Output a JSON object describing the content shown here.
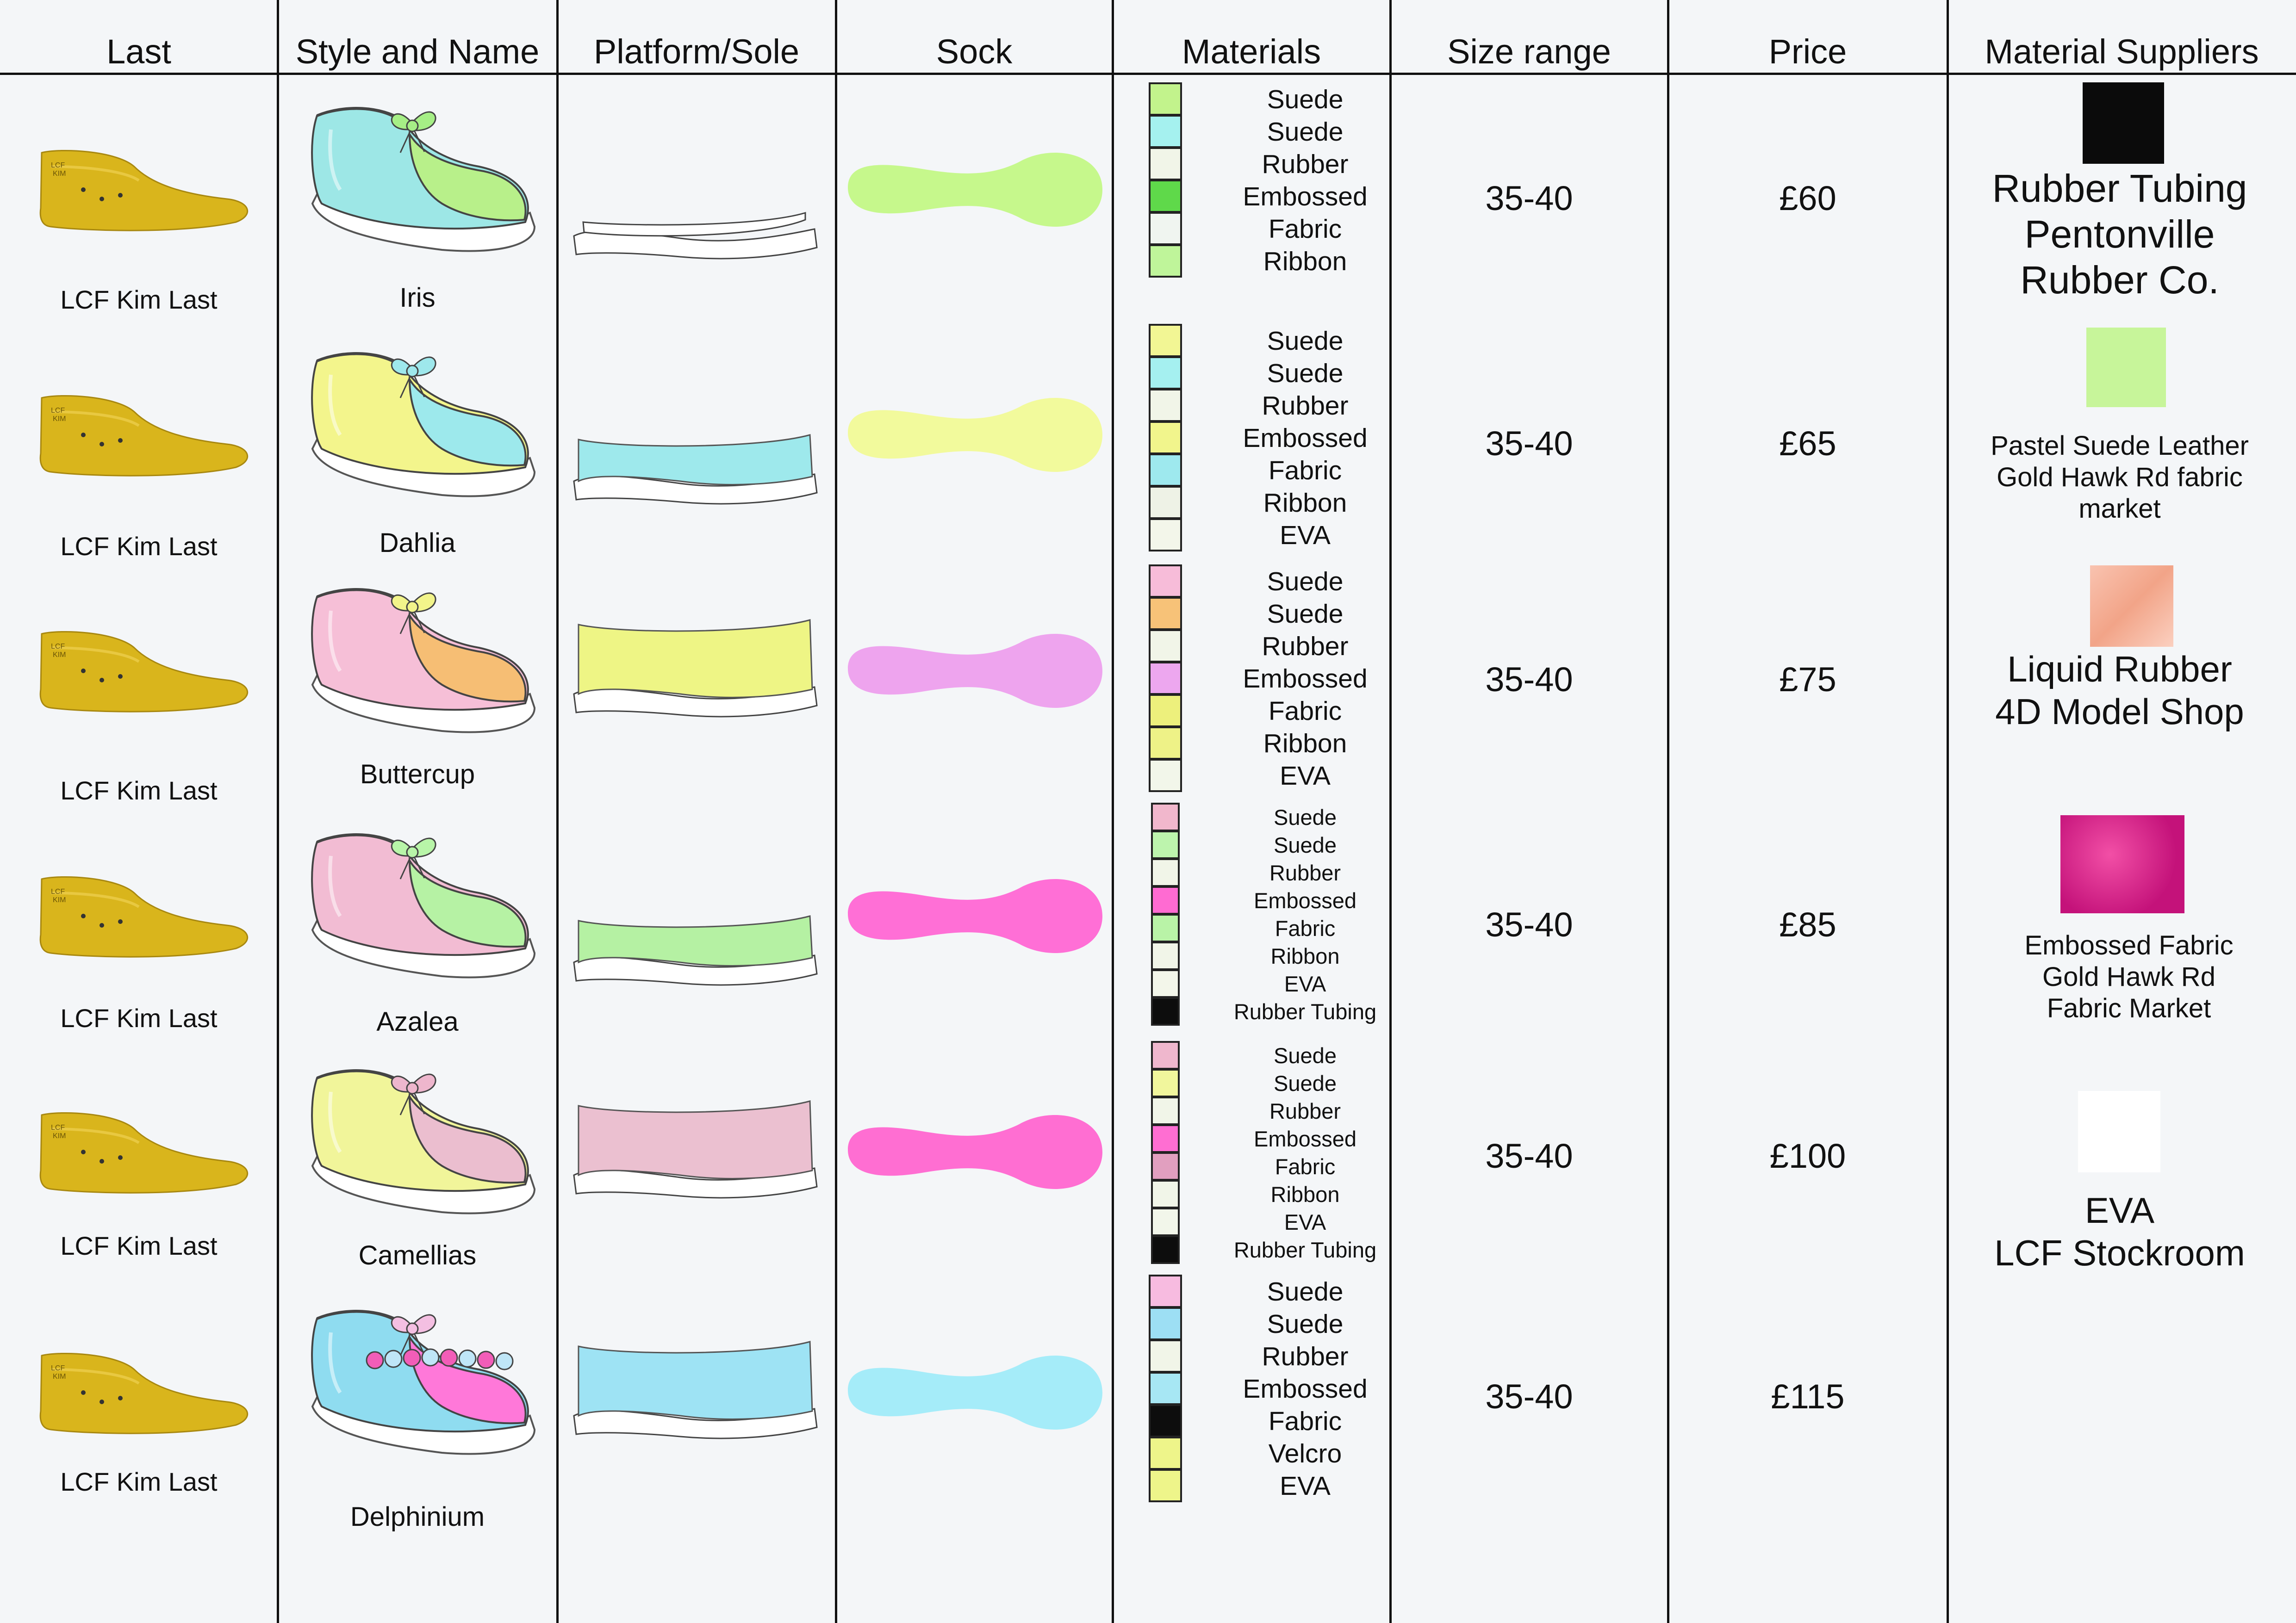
{
  "headers": {
    "last": "Last",
    "style": "Style and Name",
    "platform": "Platform/Sole",
    "sock": "Sock",
    "materials": "Materials",
    "size": "Size range",
    "price": "Price",
    "suppliers": "Material Suppliers"
  },
  "rows": [
    {
      "last": "LCF Kim Last",
      "name": "Iris",
      "size": "35-40",
      "price": "£60",
      "colors": {
        "upper": "#9de7e6",
        "accent": "#b8f08a",
        "bow": "#a6ef86",
        "sole": "#ffffff",
        "platform": "#ffffff",
        "sock": "#c6f88c"
      },
      "materials": [
        {
          "label": "Suede",
          "color": "#c2f38c"
        },
        {
          "label": "Suede",
          "color": "#a5f1ef"
        },
        {
          "label": "Rubber",
          "color": "#f1f5e8"
        },
        {
          "label": "Embossed",
          "color": "#5fd94a"
        },
        {
          "label": "Fabric",
          "color": "#f0f5f0"
        },
        {
          "label": "Ribbon",
          "color": "#bff59a"
        }
      ]
    },
    {
      "last": "LCF Kim Last",
      "name": "Dahlia",
      "size": "35-40",
      "price": "£65",
      "colors": {
        "upper": "#f3f58c",
        "accent": "#9de9ec",
        "bow": "#9ee8ec",
        "sole": "#ffffff",
        "platform": "#9ee9ec",
        "sock": "#f2fa9c"
      },
      "materials": [
        {
          "label": "Suede",
          "color": "#f2f694"
        },
        {
          "label": "Suede",
          "color": "#a5f0f0"
        },
        {
          "label": "Rubber",
          "color": "#f1f5e8"
        },
        {
          "label": "Embossed",
          "color": "#f1f58c"
        },
        {
          "label": "Fabric",
          "color": "#9ee9ee"
        },
        {
          "label": "Ribbon",
          "color": "#eef2e6"
        },
        {
          "label": "EVA",
          "color": "#f3f6ea"
        }
      ]
    },
    {
      "last": "LCF Kim Last",
      "name": "Buttercup",
      "size": "35-40",
      "price": "£75",
      "colors": {
        "upper": "#f6bfd7",
        "accent": "#f6be74",
        "bow": "#f2f48a",
        "sole": "#ffffff",
        "platform": "#eef585",
        "sock": "#eea4ee"
      },
      "materials": [
        {
          "label": "Suede",
          "color": "#f7bcd9"
        },
        {
          "label": "Suede",
          "color": "#f7c278"
        },
        {
          "label": "Rubber",
          "color": "#f1f5e8"
        },
        {
          "label": "Embossed",
          "color": "#eda7ef"
        },
        {
          "label": "Fabric",
          "color": "#edf07c"
        },
        {
          "label": "Ribbon",
          "color": "#eef287"
        },
        {
          "label": "EVA",
          "color": "#f2f6ea"
        }
      ]
    },
    {
      "last": "LCF Kim Last",
      "name": "Azalea",
      "size": "35-40",
      "price": "£85",
      "colors": {
        "upper": "#f2bcd3",
        "accent": "#b6f2a4",
        "bow": "#b8f5a8",
        "sole": "#ffffff",
        "platform": "#b5f1a3",
        "sock": "#ff6fd6"
      },
      "materials": [
        {
          "label": "Suede",
          "color": "#f1b7cc"
        },
        {
          "label": "Suede",
          "color": "#bdf4ad"
        },
        {
          "label": "Rubber",
          "color": "#f1f5e8"
        },
        {
          "label": "Embossed",
          "color": "#ff6bd2"
        },
        {
          "label": "Fabric",
          "color": "#b9f3a7"
        },
        {
          "label": "Ribbon",
          "color": "#f1f5e8"
        },
        {
          "label": "EVA",
          "color": "#f3f6ea"
        },
        {
          "label": "Rubber Tubing",
          "color": "#0d0d0d"
        }
      ]
    },
    {
      "last": "LCF Kim Last",
      "name": "Camellias",
      "size": "35-40",
      "price": "£100",
      "colors": {
        "upper": "#f1f59a",
        "accent": "#ebbecf",
        "bow": "#eeb6cd",
        "sole": "#ffffff",
        "platform": "#ebc0d0",
        "sock": "#ff6ed2"
      },
      "materials": [
        {
          "label": "Suede",
          "color": "#efb7cd"
        },
        {
          "label": "Suede",
          "color": "#f1f69c"
        },
        {
          "label": "Rubber",
          "color": "#f1f5e8"
        },
        {
          "label": "Embossed",
          "color": "#ff6ed2"
        },
        {
          "label": "Fabric",
          "color": "#e19fbf"
        },
        {
          "label": "Ribbon",
          "color": "#f1f5e8"
        },
        {
          "label": "EVA",
          "color": "#f2f6ea"
        },
        {
          "label": "Rubber Tubing",
          "color": "#0d0d0d"
        }
      ]
    },
    {
      "last": "LCF Kim Last",
      "name": "Delphinium",
      "size": "35-40",
      "price": "£115",
      "colors": {
        "upper": "#8fdcf0",
        "accent": "#ff78d9",
        "bow": "#f4bfe2",
        "sole": "#ffffff",
        "platform": "#9ee3f4",
        "sock": "#a5ecf9"
      },
      "materials": [
        {
          "label": "Suede",
          "color": "#f7bbe0"
        },
        {
          "label": "Suede",
          "color": "#9ddff4"
        },
        {
          "label": "Rubber",
          "color": "#f1f5e8"
        },
        {
          "label": "Embossed",
          "color": "#a7e7f4"
        },
        {
          "label": "Fabric",
          "color": "#0d0d0d"
        },
        {
          "label": "Velcro",
          "color": "#eef58a"
        }
      ],
      "extra_material": {
        "label": "EVA",
        "color": "#eef58a"
      }
    }
  ],
  "suppliers": [
    {
      "swatch": "#0b0b0b",
      "icon": "black-swatch",
      "lines": [
        "Rubber Tubing",
        "Pentonville",
        "Rubber Co."
      ]
    },
    {
      "swatch": "#c7f59a",
      "icon": "green-swatch",
      "lines": [
        "Pastel Suede Leather",
        "Gold Hawk Rd fabric",
        "market"
      ]
    },
    {
      "swatch": "#f6b6a0",
      "icon": "peach-swatch",
      "lines": [
        "Liquid Rubber",
        "4D Model Shop"
      ]
    },
    {
      "swatch": "#dd2a8a",
      "icon": "embossed-pink-swatch",
      "lines": [
        "Embossed Fabric",
        "Gold Hawk Rd",
        "Fabric Market"
      ]
    },
    {
      "swatch": "#ffffff",
      "icon": "white-swatch",
      "lines": [
        "EVA",
        "LCF Stockroom"
      ]
    }
  ]
}
